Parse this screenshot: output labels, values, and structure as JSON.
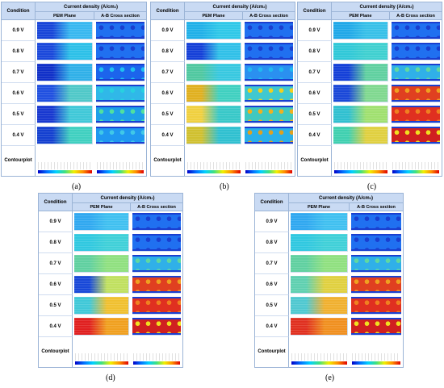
{
  "table": {
    "condition_header": "Condition",
    "title_main": "Current density (A/cm",
    "title_sup": "2",
    "title_end": ")",
    "col_pem": "PEM Plane",
    "col_ab": "A-B Cross section",
    "rows": [
      "0.9 V",
      "0.8 V",
      "0.7 V",
      "0.6 V",
      "0.5 V",
      "0.4 V"
    ],
    "contour_line1": "Contour",
    "contour_line2": "plot"
  },
  "panels": [
    {
      "id": "a",
      "caption": "(a)",
      "pem": [
        [
          "#1845d8",
          "#38b8f0"
        ],
        [
          "#1a48db",
          "#2cc0e8"
        ],
        [
          "#1030c8",
          "#30b0e8"
        ],
        [
          "#2050e0",
          "#50c8c8"
        ],
        [
          "#1838d0",
          "#40c8d8"
        ],
        [
          "#1440d0",
          "#40d0c0"
        ]
      ],
      "ab": [
        [
          "#2070f0",
          "#1a3fd0"
        ],
        [
          "#2070f0",
          "#1a3fd0"
        ],
        [
          "#1c64ec",
          "#20c0f0"
        ],
        [
          "#30b8e8",
          "#28d0e0"
        ],
        [
          "#20a0e8",
          "#50e0a0"
        ],
        [
          "#2098f0",
          "#40c8e8"
        ]
      ]
    },
    {
      "id": "b",
      "caption": "(b)",
      "pem": [
        [
          "#20b0e8",
          "#30c8e8"
        ],
        [
          "#1540d8",
          "#30c0e8"
        ],
        [
          "#50c8a0",
          "#38c8e0"
        ],
        [
          "#e0b020",
          "#40d0c0"
        ],
        [
          "#f0d040",
          "#38c8c8"
        ],
        [
          "#d0c030",
          "#30c0d0"
        ]
      ],
      "ab": [
        [
          "#2070f0",
          "#1a3fd0"
        ],
        [
          "#2070f0",
          "#1a3fd0"
        ],
        [
          "#2a90f0",
          "#20b8f0"
        ],
        [
          "#40c8d0",
          "#f0d020"
        ],
        [
          "#40c8c0",
          "#f0b020"
        ],
        [
          "#2ab0e8",
          "#e0a020"
        ]
      ]
    },
    {
      "id": "c",
      "caption": "(c)",
      "pem": [
        [
          "#20a8e8",
          "#38c0e8"
        ],
        [
          "#30c8d8",
          "#40d0d0"
        ],
        [
          "#1440d8",
          "#60d0a0"
        ],
        [
          "#1a48d8",
          "#80d890"
        ],
        [
          "#30c0d0",
          "#a0e070"
        ],
        [
          "#40d0b0",
          "#e0d040"
        ]
      ],
      "ab": [
        [
          "#2070f0",
          "#1a3fd0"
        ],
        [
          "#2070f0",
          "#1a3fd0"
        ],
        [
          "#30b0e8",
          "#60d8a0"
        ],
        [
          "#e04020",
          "#f0a020"
        ],
        [
          "#e03020",
          "#f08020"
        ],
        [
          "#d02020",
          "#f0e020"
        ]
      ]
    },
    {
      "id": "d",
      "caption": "(d)",
      "pem": [
        [
          "#30a8f0",
          "#40c0f0"
        ],
        [
          "#30c8e0",
          "#40d0d8"
        ],
        [
          "#60d0a0",
          "#90e080"
        ],
        [
          "#1848d8",
          "#c0e060"
        ],
        [
          "#40c8d8",
          "#f0c030"
        ],
        [
          "#e02020",
          "#f0a020"
        ]
      ],
      "ab": [
        [
          "#2070f0",
          "#1a3fd0"
        ],
        [
          "#2070f0",
          "#1a3fd0"
        ],
        [
          "#30b0e8",
          "#60d8a0"
        ],
        [
          "#e04020",
          "#f0a020"
        ],
        [
          "#e03020",
          "#f08020"
        ],
        [
          "#d02020",
          "#f0e020"
        ]
      ]
    },
    {
      "id": "e",
      "caption": "(e)",
      "pem": [
        [
          "#30a8f0",
          "#40c0f0"
        ],
        [
          "#30c8e0",
          "#40d0d8"
        ],
        [
          "#60d0a0",
          "#90e080"
        ],
        [
          "#60d0b0",
          "#e0d040"
        ],
        [
          "#50c8d0",
          "#f0b030"
        ],
        [
          "#e03020",
          "#f09020"
        ]
      ],
      "ab": [
        [
          "#2070f0",
          "#1a3fd0"
        ],
        [
          "#2070f0",
          "#1a3fd0"
        ],
        [
          "#30b0e8",
          "#60d8a0"
        ],
        [
          "#e04020",
          "#f0a020"
        ],
        [
          "#e03020",
          "#f08020"
        ],
        [
          "#d02020",
          "#f0e020"
        ]
      ]
    }
  ]
}
